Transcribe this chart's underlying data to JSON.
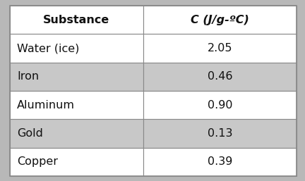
{
  "col_headers": [
    "Substance",
    "C (J/g-ºC)"
  ],
  "rows": [
    [
      "Water (ice)",
      "2.05"
    ],
    [
      "Iron",
      "0.46"
    ],
    [
      "Aluminum",
      "0.90"
    ],
    [
      "Gold",
      "0.13"
    ],
    [
      "Copper",
      "0.39"
    ]
  ],
  "header_bg": "#ffffff",
  "row_bg_even": "#ffffff",
  "row_bg_odd": "#c8c8c8",
  "outer_bg": "#b8b8b8",
  "border_color": "#888888",
  "text_color": "#111111",
  "header_fontsize": 11.5,
  "cell_fontsize": 11.5,
  "col_split": 0.465
}
